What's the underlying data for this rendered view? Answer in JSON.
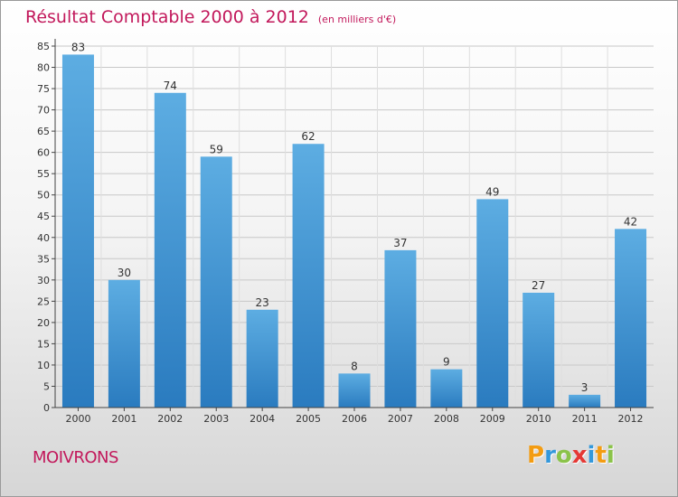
{
  "header": {
    "title": "Résultat Comptable 2000 à 2012",
    "subtitle": "(en milliers d'€)"
  },
  "footer": {
    "commune": "MOIVRONS",
    "logo_letters": [
      "P",
      "r",
      "o",
      "x",
      "i",
      "t",
      "i"
    ],
    "logo_colors": [
      "#f39c12",
      "#3498db",
      "#8bc34a",
      "#e53935",
      "#3498db",
      "#f39c12",
      "#8bc34a"
    ]
  },
  "colors": {
    "bar_light": "#5dade2",
    "bar_dark": "#2a7bbf",
    "title": "#c2185b"
  },
  "chart_data": {
    "type": "bar",
    "title": "Résultat Comptable 2000 à 2012",
    "subtitle": "(en milliers d'€)",
    "xlabel": "",
    "ylabel": "",
    "categories": [
      "2000",
      "2001",
      "2002",
      "2003",
      "2004",
      "2005",
      "2006",
      "2007",
      "2008",
      "2009",
      "2010",
      "2011",
      "2012"
    ],
    "values": [
      83,
      30,
      74,
      59,
      23,
      62,
      8,
      37,
      9,
      49,
      27,
      3,
      42
    ],
    "ylim": [
      0,
      85
    ],
    "yticks": [
      0,
      5,
      10,
      15,
      20,
      25,
      30,
      35,
      40,
      45,
      50,
      55,
      60,
      65,
      70,
      75,
      80,
      85
    ],
    "grid": true
  }
}
